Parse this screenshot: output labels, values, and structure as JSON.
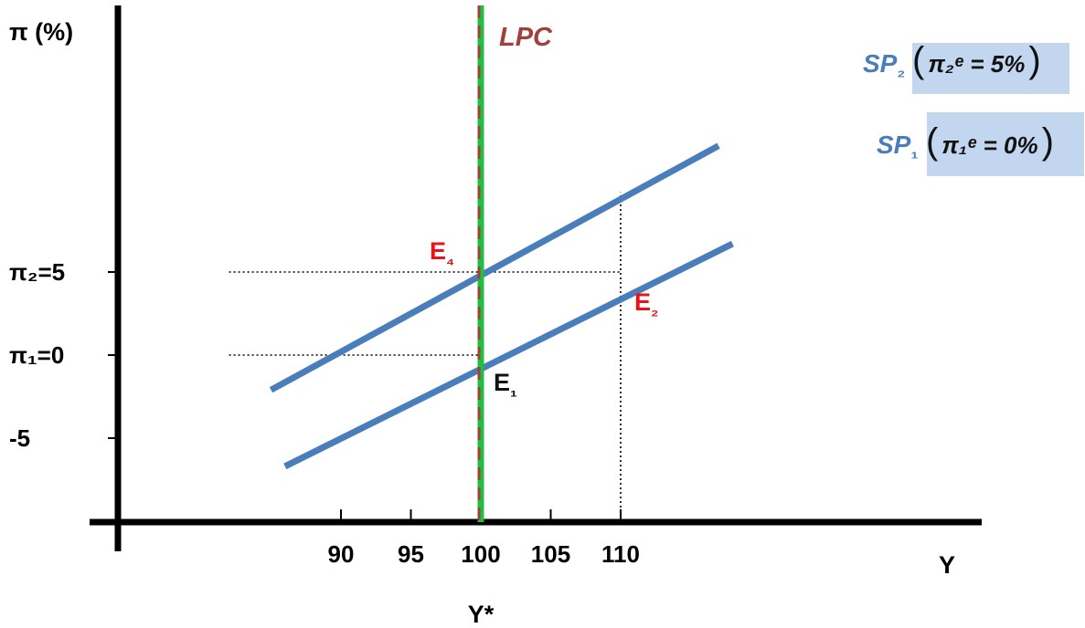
{
  "chart_data": {
    "type": "line",
    "title": "",
    "ylabel": "π (%)",
    "xlabel": "Y",
    "x_star_label": "Y*",
    "x_ticks": [
      "90",
      "95",
      "100",
      "105",
      "110"
    ],
    "y_ticks": [
      {
        "value": 5,
        "label": "π₂=5"
      },
      {
        "value": 0,
        "label": "π₁=0"
      },
      {
        "value": -5,
        "label": "-5"
      }
    ],
    "xlim": [
      82,
      126
    ],
    "ylim": [
      -10,
      15
    ],
    "grid": false,
    "series": [
      {
        "name": "SP₁",
        "expectation": "π₁ᵉ = 0%",
        "x": [
          86,
          118
        ],
        "y": [
          -6.7,
          6.7
        ],
        "color": "#4a7ebb"
      },
      {
        "name": "SP₂",
        "expectation": "π₂ᵉ = 5%",
        "x": [
          85,
          117
        ],
        "y": [
          -2.1,
          12.6
        ],
        "color": "#4a7ebb"
      }
    ],
    "vertical_line": {
      "name": "LPC",
      "x": 100,
      "colors": [
        "#1fbf3f",
        "#a0403c"
      ]
    },
    "points": [
      {
        "label": "E₁",
        "x": 100,
        "y": 0,
        "color": "#111111"
      },
      {
        "label": "E₂",
        "x": 110,
        "y": 5,
        "color": "#e8141a"
      },
      {
        "label": "E₄",
        "x": 100,
        "y": 5,
        "color": "#e8141a"
      }
    ],
    "guides": [
      {
        "from": [
          82,
          5
        ],
        "to": [
          110,
          5
        ]
      },
      {
        "from": [
          82,
          0
        ],
        "to": [
          100,
          0
        ]
      },
      {
        "from": [
          110,
          -10
        ],
        "to": [
          110,
          9.8
        ]
      }
    ]
  },
  "colors": {
    "axis": "#000000",
    "curve": "#4a7ebb",
    "lpc_green": "#1fbf3f",
    "lpc_dash": "#a0403c",
    "label_box": "#c3d6f0",
    "red": "#e8141a"
  }
}
